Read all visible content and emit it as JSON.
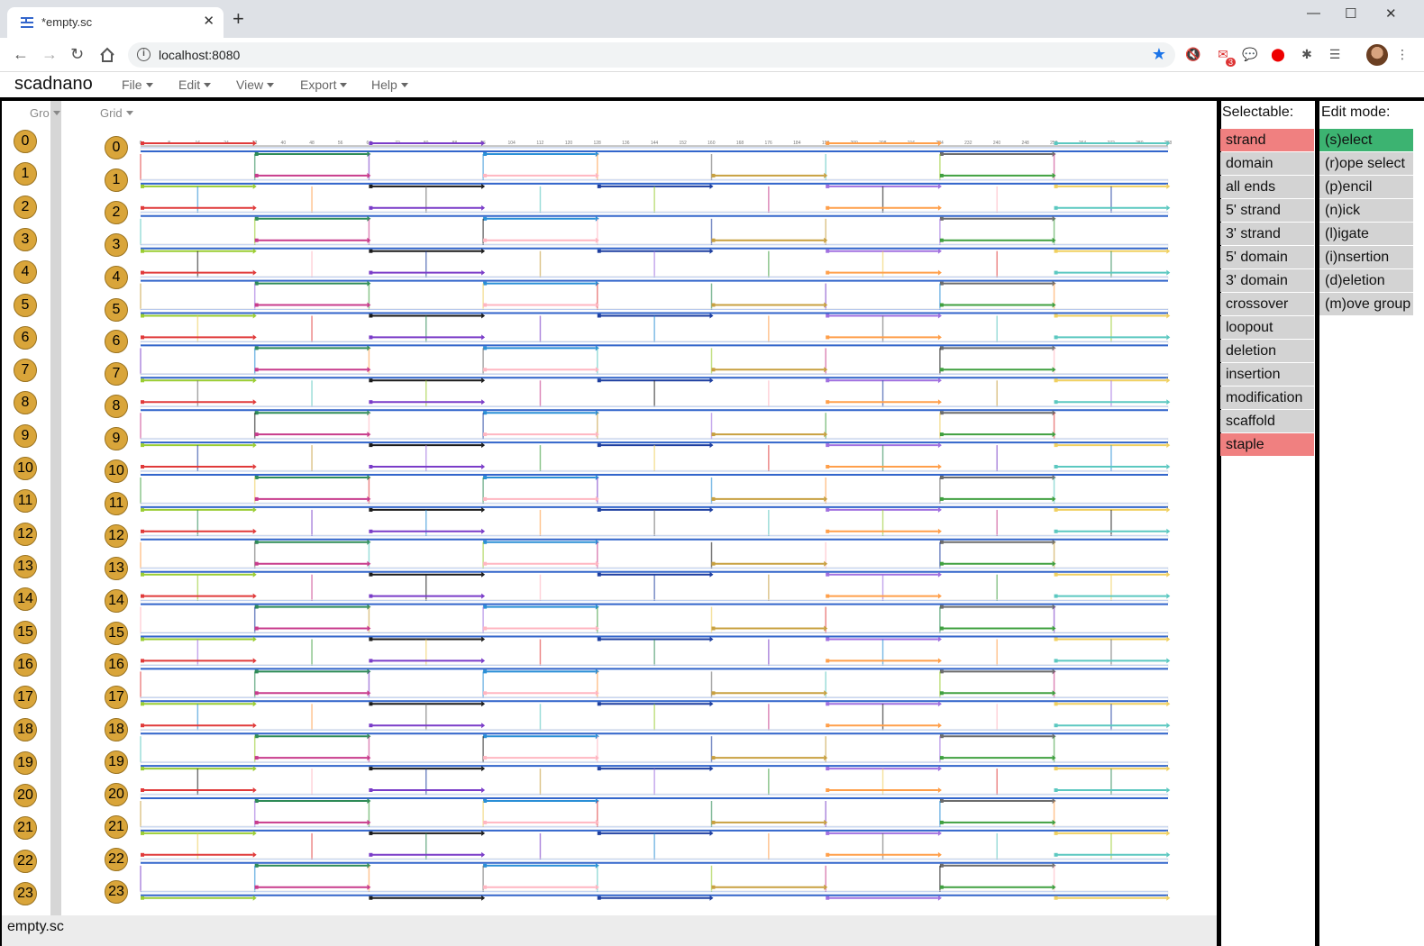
{
  "browser": {
    "tab_title": "*empty.sc",
    "tab_close": "✕",
    "new_tab": "+",
    "url": "localhost:8080",
    "minimize": "—",
    "maximize": "☐",
    "close": "✕",
    "mail_badge": "3"
  },
  "app": {
    "brand": "scadnano",
    "menus": [
      "File",
      "Edit",
      "View",
      "Export",
      "Help"
    ],
    "side_header": "Gro",
    "grid_header": "Grid",
    "helix_indices": [
      "0",
      "1",
      "2",
      "3",
      "4",
      "5",
      "6",
      "7",
      "8",
      "9",
      "10",
      "11",
      "12",
      "13",
      "14",
      "15",
      "16",
      "17",
      "18",
      "19",
      "20",
      "21",
      "22",
      "23"
    ],
    "ruler_ticks": [
      "0",
      "8",
      "16",
      "24",
      "32",
      "40",
      "48",
      "56",
      "64",
      "72",
      "80",
      "88",
      "96",
      "104",
      "112",
      "120",
      "128",
      "136",
      "144",
      "152",
      "160",
      "168",
      "176",
      "184",
      "192",
      "200",
      "208",
      "216",
      "224",
      "232",
      "240",
      "248",
      "256",
      "264",
      "272",
      "280",
      "288"
    ],
    "filename": "empty.sc"
  },
  "selectable": {
    "title": "Selectable:",
    "items": [
      {
        "label": "strand",
        "on": true
      },
      {
        "label": "domain",
        "on": false
      },
      {
        "label": "all ends",
        "on": false
      },
      {
        "label": "5' strand",
        "on": false
      },
      {
        "label": "3' strand",
        "on": false
      },
      {
        "label": "5' domain",
        "on": false
      },
      {
        "label": "3' domain",
        "on": false
      },
      {
        "label": "crossover",
        "on": false
      },
      {
        "label": "loopout",
        "on": false
      },
      {
        "label": "deletion",
        "on": false
      },
      {
        "label": "insertion",
        "on": false
      },
      {
        "label": "modification",
        "on": false
      },
      {
        "label": "scaffold",
        "on": false
      },
      {
        "label": "staple",
        "on": true
      }
    ]
  },
  "edit_mode": {
    "title": "Edit mode:",
    "items": [
      {
        "label": "(s)elect",
        "on": true
      },
      {
        "label": "(r)ope select",
        "on": false
      },
      {
        "label": "(p)encil",
        "on": false
      },
      {
        "label": "(n)ick",
        "on": false
      },
      {
        "label": "(l)igate",
        "on": false
      },
      {
        "label": "(i)nsertion",
        "on": false
      },
      {
        "label": "(d)eletion",
        "on": false
      },
      {
        "label": "(m)ove group",
        "on": false
      }
    ]
  },
  "colors": {
    "selected_red": "#f08080",
    "selected_green": "#3cb371",
    "unselected": "#d3d3d3",
    "scaffold": "#3366cc",
    "helix_circle": "#d9a53a",
    "staples": [
      "#e03a3a",
      "#2e8b57",
      "#7a3cc8",
      "#2a8fd6",
      "#ff9f4a",
      "#6c6c6c",
      "#5bc8c0",
      "#9acd32",
      "#c83c8c",
      "#1a1a1a",
      "#ffb6c1",
      "#1e3fa0",
      "#c8a040",
      "#a070e0",
      "#40a040",
      "#f0d060"
    ]
  }
}
